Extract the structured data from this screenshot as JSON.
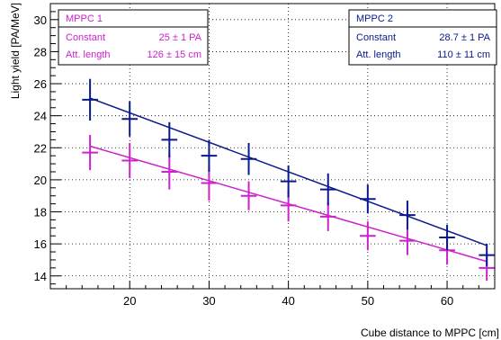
{
  "chart_data": {
    "type": "scatter",
    "xlabel": "Cube distance to MPPC [cm]",
    "ylabel": "Light yield [PA/MeV]",
    "xlim": [
      10,
      66
    ],
    "ylim": [
      13.2,
      31.0
    ],
    "x_ticks": [
      20,
      30,
      40,
      50,
      60
    ],
    "y_ticks": [
      14,
      16,
      18,
      20,
      22,
      24,
      26,
      28,
      30
    ],
    "grid": true,
    "legend": [
      "top-left",
      "top-right"
    ],
    "series": [
      {
        "name": "MPPC 1",
        "color": "#cc22cc",
        "x": [
          15,
          20,
          25,
          30,
          35,
          40,
          45,
          50,
          55,
          60,
          65
        ],
        "y": [
          21.7,
          21.2,
          20.5,
          19.8,
          19.0,
          18.4,
          17.7,
          16.5,
          16.2,
          15.6,
          14.5
        ],
        "yerr": [
          1.1,
          1.1,
          1.1,
          1.1,
          0.9,
          1.0,
          0.9,
          0.9,
          0.9,
          0.9,
          0.8
        ],
        "xerr": 1.0,
        "fit": {
          "constant": "25 ± 1 PA",
          "att_length": "126 ± 15 cm",
          "x_range": [
            15,
            65
          ],
          "y_range": [
            22.1,
            14.9
          ]
        }
      },
      {
        "name": "MPPC 2",
        "color": "#0a1a8c",
        "x": [
          15,
          20,
          25,
          30,
          35,
          40,
          45,
          50,
          55,
          60,
          65
        ],
        "y": [
          25.0,
          23.8,
          22.5,
          21.5,
          21.3,
          19.9,
          19.4,
          18.8,
          17.8,
          16.4,
          15.3
        ],
        "yerr": [
          1.3,
          1.1,
          1.1,
          1.0,
          1.0,
          1.0,
          1.0,
          0.9,
          0.9,
          0.8,
          0.7
        ],
        "xerr": 1.0,
        "fit": {
          "constant": "28.7 ± 1 PA",
          "att_length": "110 ± 11 cm",
          "x_range": [
            15,
            65
          ],
          "y_range": [
            25.1,
            15.9
          ]
        }
      }
    ]
  },
  "legend1": {
    "title": "MPPC 1",
    "constant_label": "Constant",
    "constant_value": "25 ± 1 PA",
    "att_label": "Att. length",
    "att_value": "126 ± 15 cm"
  },
  "legend2": {
    "title": "MPPC 2",
    "constant_label": "Constant",
    "constant_value": "28.7 ± 1 PA",
    "att_label": "Att. length",
    "att_value": "110 ± 11 cm"
  }
}
